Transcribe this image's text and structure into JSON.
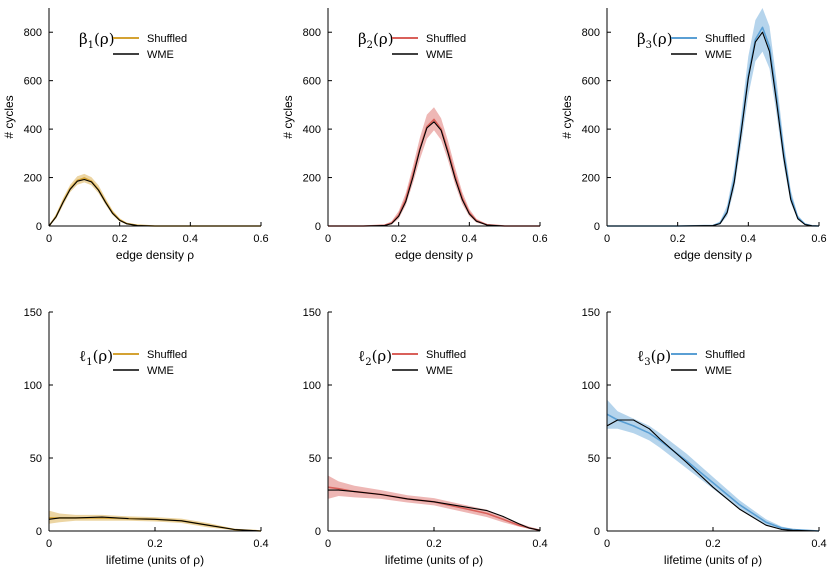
{
  "chart_data": [
    {
      "type": "line",
      "panel_label": {
        "main": "β",
        "sub": "1",
        "tail": "(ρ)"
      },
      "xlabel": "edge density ρ",
      "ylabel": "# cycles",
      "xlim": [
        0,
        0.6
      ],
      "ylim": [
        0,
        900
      ],
      "xticks": [
        "0",
        "0.2",
        "0.4",
        "0.6"
      ],
      "xtick_values": [
        0,
        0.2,
        0.4,
        0.6
      ],
      "yticks": [
        "0",
        "200",
        "400",
        "600",
        "800"
      ],
      "ytick_values": [
        0,
        200,
        400,
        600,
        800
      ],
      "grid": false,
      "legend": "top-left",
      "series": [
        {
          "name": "Shuffled",
          "color": "#d4a232",
          "x": [
            0,
            0.02,
            0.04,
            0.06,
            0.08,
            0.1,
            0.12,
            0.14,
            0.16,
            0.18,
            0.2,
            0.22,
            0.25,
            0.3,
            0.4,
            0.5,
            0.6
          ],
          "values": [
            0,
            40,
            100,
            155,
            188,
            198,
            185,
            150,
            100,
            55,
            25,
            10,
            3,
            0,
            0,
            0,
            0
          ],
          "band_lower": [
            0,
            30,
            85,
            140,
            170,
            180,
            168,
            135,
            88,
            45,
            18,
            6,
            1,
            0,
            0,
            0,
            0
          ],
          "band_upper": [
            0,
            50,
            115,
            170,
            205,
            215,
            202,
            168,
            115,
            65,
            32,
            14,
            5,
            1,
            0,
            0,
            0
          ]
        },
        {
          "name": "WME",
          "color": "#000000",
          "x": [
            0,
            0.02,
            0.04,
            0.06,
            0.08,
            0.1,
            0.12,
            0.14,
            0.16,
            0.18,
            0.2,
            0.22,
            0.25,
            0.3,
            0.4,
            0.5,
            0.6
          ],
          "values": [
            0,
            38,
            98,
            152,
            185,
            192,
            182,
            148,
            98,
            52,
            23,
            9,
            2,
            0,
            0,
            0,
            0
          ]
        }
      ]
    },
    {
      "type": "line",
      "panel_label": {
        "main": "β",
        "sub": "2",
        "tail": "(ρ)"
      },
      "xlabel": "edge density ρ",
      "ylabel": "# cycles",
      "xlim": [
        0,
        0.6
      ],
      "ylim": [
        0,
        900
      ],
      "xticks": [
        "0",
        "0.2",
        "0.4",
        "0.6"
      ],
      "xtick_values": [
        0,
        0.2,
        0.4,
        0.6
      ],
      "yticks": [
        "0",
        "200",
        "400",
        "600",
        "800"
      ],
      "ytick_values": [
        0,
        200,
        400,
        600,
        800
      ],
      "grid": false,
      "legend": "top-left",
      "series": [
        {
          "name": "Shuffled",
          "color": "#d9605a",
          "x": [
            0,
            0.1,
            0.16,
            0.18,
            0.2,
            0.22,
            0.24,
            0.26,
            0.28,
            0.3,
            0.32,
            0.34,
            0.36,
            0.38,
            0.4,
            0.42,
            0.45,
            0.5,
            0.6
          ],
          "values": [
            0,
            0,
            3,
            12,
            45,
            110,
            210,
            320,
            410,
            440,
            400,
            310,
            205,
            115,
            55,
            22,
            5,
            0,
            0
          ],
          "band_lower": [
            0,
            0,
            1,
            6,
            30,
            85,
            175,
            275,
            360,
            395,
            355,
            270,
            170,
            90,
            40,
            14,
            2,
            0,
            0
          ],
          "band_upper": [
            0,
            0,
            6,
            20,
            62,
            135,
            245,
            365,
            460,
            490,
            445,
            350,
            240,
            140,
            70,
            30,
            8,
            1,
            0
          ]
        },
        {
          "name": "WME",
          "color": "#000000",
          "x": [
            0,
            0.1,
            0.16,
            0.18,
            0.2,
            0.22,
            0.24,
            0.26,
            0.28,
            0.3,
            0.32,
            0.34,
            0.36,
            0.38,
            0.4,
            0.42,
            0.45,
            0.5,
            0.6
          ],
          "values": [
            0,
            0,
            2,
            10,
            40,
            100,
            200,
            315,
            405,
            430,
            395,
            300,
            195,
            108,
            50,
            20,
            4,
            0,
            0
          ]
        }
      ]
    },
    {
      "type": "line",
      "panel_label": {
        "main": "β",
        "sub": "3",
        "tail": "(ρ)"
      },
      "xlabel": "edge density ρ",
      "ylabel": "# cycles",
      "xlim": [
        0,
        0.6
      ],
      "ylim": [
        0,
        900
      ],
      "xticks": [
        "0",
        "0.2",
        "0.4",
        "0.6"
      ],
      "xtick_values": [
        0,
        0.2,
        0.4,
        0.6
      ],
      "yticks": [
        "0",
        "200",
        "400",
        "600",
        "800"
      ],
      "ytick_values": [
        0,
        200,
        400,
        600,
        800
      ],
      "grid": false,
      "legend": "top-left",
      "series": [
        {
          "name": "Shuffled",
          "color": "#5a9fd4",
          "x": [
            0,
            0.2,
            0.3,
            0.32,
            0.34,
            0.36,
            0.38,
            0.4,
            0.42,
            0.44,
            0.46,
            0.48,
            0.5,
            0.52,
            0.54,
            0.56,
            0.58,
            0.6
          ],
          "values": [
            0,
            0,
            2,
            12,
            60,
            190,
            400,
            620,
            770,
            820,
            740,
            530,
            300,
            120,
            35,
            8,
            1,
            0
          ],
          "band_lower": [
            0,
            0,
            1,
            6,
            40,
            150,
            340,
            540,
            680,
            720,
            650,
            460,
            250,
            95,
            25,
            5,
            0,
            0
          ],
          "band_upper": [
            0,
            0,
            4,
            20,
            85,
            235,
            460,
            700,
            850,
            900,
            825,
            600,
            350,
            150,
            45,
            11,
            2,
            0
          ]
        },
        {
          "name": "WME",
          "color": "#000000",
          "x": [
            0,
            0.2,
            0.3,
            0.32,
            0.34,
            0.36,
            0.38,
            0.4,
            0.42,
            0.44,
            0.46,
            0.48,
            0.5,
            0.52,
            0.54,
            0.56,
            0.58,
            0.6
          ],
          "values": [
            0,
            0,
            2,
            10,
            55,
            180,
            390,
            610,
            760,
            800,
            720,
            510,
            285,
            110,
            30,
            6,
            1,
            0
          ]
        }
      ]
    },
    {
      "type": "line",
      "panel_label": {
        "main": "ℓ",
        "sub": "1",
        "tail": "(ρ)"
      },
      "xlabel": "lifetime (units of ρ)",
      "ylabel": "",
      "xlim": [
        0,
        0.4
      ],
      "ylim": [
        0,
        150
      ],
      "xticks": [
        "0",
        "0.2",
        "0.4"
      ],
      "xtick_values": [
        0,
        0.2,
        0.4
      ],
      "yticks": [
        "0",
        "50",
        "100",
        "150"
      ],
      "ytick_values": [
        0,
        50,
        100,
        150
      ],
      "grid": false,
      "legend": "top-left",
      "series": [
        {
          "name": "Shuffled",
          "color": "#d4a232",
          "x": [
            0,
            0.02,
            0.05,
            0.1,
            0.15,
            0.2,
            0.25,
            0.3,
            0.35,
            0.4
          ],
          "values": [
            9,
            9,
            9,
            9,
            8.5,
            8,
            7,
            4,
            1,
            0
          ],
          "band_lower": [
            5,
            6,
            7,
            7,
            7,
            6.5,
            5.5,
            2.5,
            0.5,
            0
          ],
          "band_upper": [
            14,
            12,
            11,
            11,
            10,
            9.5,
            8.5,
            5.5,
            1.5,
            0.3
          ]
        },
        {
          "name": "WME",
          "color": "#000000",
          "x": [
            0,
            0.02,
            0.05,
            0.1,
            0.15,
            0.2,
            0.25,
            0.3,
            0.35,
            0.4
          ],
          "values": [
            8,
            9,
            9,
            9.5,
            8.5,
            8,
            7,
            4,
            1,
            0
          ]
        }
      ]
    },
    {
      "type": "line",
      "panel_label": {
        "main": "ℓ",
        "sub": "2",
        "tail": "(ρ)"
      },
      "xlabel": "lifetime (units of ρ)",
      "ylabel": "",
      "xlim": [
        0,
        0.4
      ],
      "ylim": [
        0,
        150
      ],
      "xticks": [
        "0",
        "0.2",
        "0.4"
      ],
      "xtick_values": [
        0,
        0.2,
        0.4
      ],
      "yticks": [
        "0",
        "50",
        "100",
        "150"
      ],
      "ytick_values": [
        0,
        50,
        100,
        150
      ],
      "grid": false,
      "legend": "top-left",
      "series": [
        {
          "name": "Shuffled",
          "color": "#d9605a",
          "x": [
            0,
            0.02,
            0.05,
            0.1,
            0.15,
            0.2,
            0.25,
            0.3,
            0.33,
            0.36,
            0.38,
            0.4
          ],
          "values": [
            30,
            29,
            27,
            25,
            22,
            20,
            16,
            12,
            8,
            4,
            2,
            0.5
          ],
          "band_lower": [
            22,
            24,
            23,
            22,
            19.5,
            17.5,
            13.5,
            9.5,
            6,
            3,
            1.5,
            0.3
          ],
          "band_upper": [
            38,
            34,
            31,
            28,
            24.5,
            22.5,
            18.5,
            14.5,
            10,
            5.5,
            3,
            1
          ]
        },
        {
          "name": "WME",
          "color": "#000000",
          "x": [
            0,
            0.02,
            0.05,
            0.1,
            0.15,
            0.2,
            0.25,
            0.3,
            0.33,
            0.36,
            0.38,
            0.4
          ],
          "values": [
            28,
            28,
            27,
            25,
            22,
            20,
            17,
            14,
            10,
            5,
            2,
            0.5
          ]
        }
      ]
    },
    {
      "type": "line",
      "panel_label": {
        "main": "ℓ",
        "sub": "3",
        "tail": "(ρ)"
      },
      "xlabel": "lifetime (units of ρ)",
      "ylabel": "",
      "xlim": [
        0,
        0.4
      ],
      "ylim": [
        0,
        150
      ],
      "xticks": [
        "0",
        "0.2",
        "0.4"
      ],
      "xtick_values": [
        0,
        0.2,
        0.4
      ],
      "yticks": [
        "0",
        "50",
        "100",
        "150"
      ],
      "ytick_values": [
        0,
        50,
        100,
        150
      ],
      "grid": false,
      "legend": "top-left",
      "series": [
        {
          "name": "Shuffled",
          "color": "#5a9fd4",
          "x": [
            0,
            0.02,
            0.05,
            0.08,
            0.1,
            0.15,
            0.2,
            0.25,
            0.3,
            0.33,
            0.35,
            0.4
          ],
          "values": [
            80,
            76,
            72,
            67,
            62,
            48,
            33,
            18,
            6,
            2,
            1,
            0
          ],
          "band_lower": [
            70,
            70,
            67,
            62,
            57,
            43,
            29,
            15,
            4,
            1,
            0.5,
            0
          ],
          "band_upper": [
            90,
            82,
            77,
            72,
            67,
            53,
            37,
            21,
            8,
            3,
            1.5,
            0.2
          ]
        },
        {
          "name": "WME",
          "color": "#000000",
          "x": [
            0,
            0.02,
            0.05,
            0.08,
            0.1,
            0.15,
            0.2,
            0.25,
            0.3,
            0.33,
            0.35,
            0.4
          ],
          "values": [
            72,
            76,
            76,
            70,
            63,
            47,
            30,
            15,
            4,
            1,
            0.5,
            0
          ]
        }
      ]
    }
  ]
}
